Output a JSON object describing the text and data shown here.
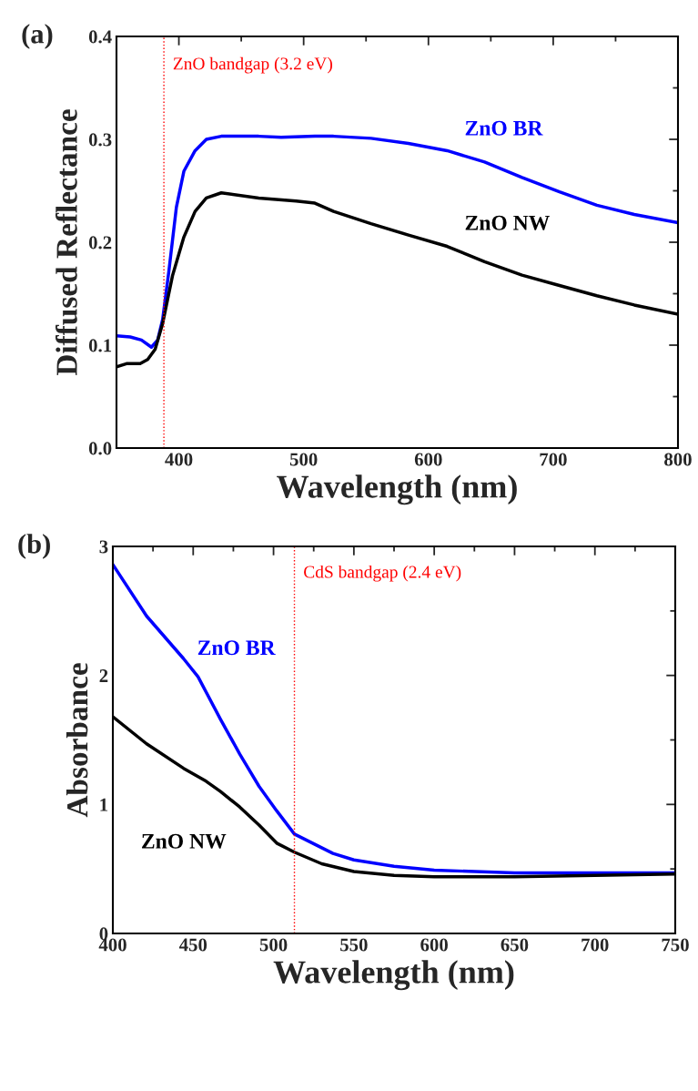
{
  "chart_data": [
    {
      "type": "line",
      "title": "(a)",
      "xlabel": "Wavelength (nm)",
      "ylabel": "Diffused Reflectance",
      "xlim": [
        350,
        800
      ],
      "ylim": [
        0,
        0.4
      ],
      "xticks": [
        400,
        500,
        600,
        700,
        800
      ],
      "yticks": [
        {
          "value": 0,
          "label": "0.0"
        },
        0.1,
        0.2,
        0.3,
        0.4
      ],
      "grid": false,
      "legend": false,
      "series": [
        {
          "name": "ZnO BR",
          "color": "#0000ff",
          "x": [
            350,
            361,
            370,
            378,
            383,
            387,
            392,
            398,
            404,
            413,
            422,
            434,
            464,
            482,
            509,
            524,
            554,
            584,
            615,
            645,
            675,
            705,
            735,
            765,
            800
          ],
          "values": [
            0.109,
            0.108,
            0.105,
            0.098,
            0.105,
            0.125,
            0.172,
            0.234,
            0.269,
            0.289,
            0.3,
            0.303,
            0.303,
            0.302,
            0.303,
            0.303,
            0.301,
            0.296,
            0.289,
            0.278,
            0.263,
            0.249,
            0.236,
            0.227,
            0.219
          ]
        },
        {
          "name": "ZnO NW",
          "color": "#000000",
          "x": [
            350,
            358,
            369,
            375,
            381,
            387,
            395,
            404,
            413,
            422,
            434,
            464,
            494,
            509,
            524,
            554,
            584,
            615,
            645,
            675,
            705,
            735,
            765,
            800
          ],
          "values": [
            0.079,
            0.082,
            0.082,
            0.086,
            0.096,
            0.121,
            0.168,
            0.205,
            0.23,
            0.243,
            0.248,
            0.243,
            0.24,
            0.238,
            0.23,
            0.218,
            0.207,
            0.196,
            0.181,
            0.168,
            0.158,
            0.148,
            0.139,
            0.13
          ]
        }
      ],
      "ref_lines": [
        {
          "axis": "x",
          "value": 388,
          "label": "ZnO bandgap (3.2 eV)",
          "color": "#ff0000",
          "line_style": "dotted"
        }
      ]
    },
    {
      "type": "line",
      "title": "(b)",
      "xlabel": "Wavelength (nm)",
      "ylabel": "Absorbance",
      "xlim": [
        400,
        750
      ],
      "ylim": [
        0,
        3
      ],
      "xticks": [
        400,
        450,
        500,
        550,
        600,
        650,
        700,
        750
      ],
      "yticks": [
        0,
        1,
        2,
        3
      ],
      "grid": false,
      "legend": false,
      "series": [
        {
          "name": "ZnO BR",
          "color": "#0000ff",
          "x": [
            400,
            421,
            444,
            453,
            467,
            479,
            491,
            502,
            513,
            537,
            550,
            575,
            600,
            650,
            700,
            750
          ],
          "values": [
            2.86,
            2.46,
            2.13,
            1.99,
            1.66,
            1.39,
            1.14,
            0.95,
            0.77,
            0.62,
            0.57,
            0.52,
            0.49,
            0.47,
            0.47,
            0.47
          ]
        },
        {
          "name": "ZnO NW",
          "color": "#000000",
          "x": [
            400,
            421,
            444,
            458,
            467,
            479,
            491,
            502,
            513,
            530,
            550,
            575,
            600,
            650,
            700,
            750
          ],
          "values": [
            1.68,
            1.47,
            1.28,
            1.18,
            1.1,
            0.98,
            0.84,
            0.7,
            0.63,
            0.54,
            0.48,
            0.45,
            0.44,
            0.44,
            0.45,
            0.46
          ]
        }
      ],
      "ref_lines": [
        {
          "axis": "x",
          "value": 513,
          "label": "CdS bandgap (2.4 eV)",
          "color": "#ff0000",
          "line_style": "dotted"
        }
      ]
    }
  ]
}
